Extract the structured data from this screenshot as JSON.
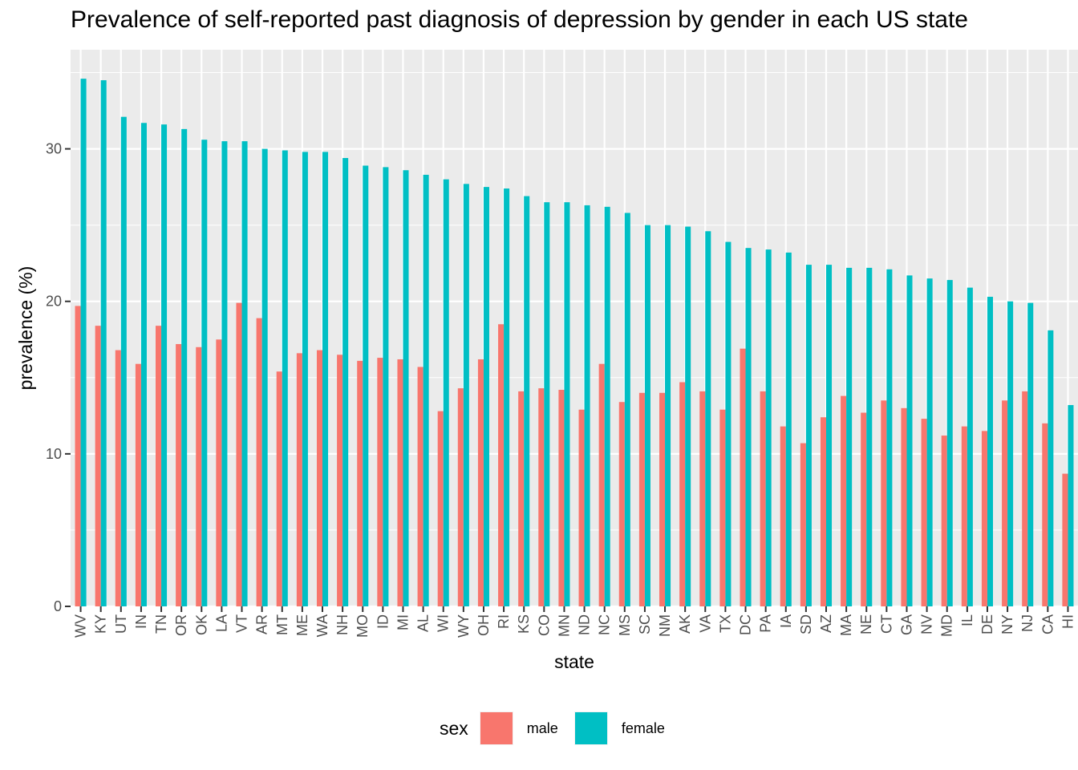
{
  "chart_data": {
    "type": "bar",
    "title": "Prevalence of self-reported past diagnosis of depression by gender in each US state",
    "xlabel": "state",
    "ylabel": "prevalence (%)",
    "ylim": [
      0,
      36.5
    ],
    "yticks": [
      0,
      10,
      20,
      30
    ],
    "grid": true,
    "legend": {
      "title": "sex",
      "position": "bottom"
    },
    "categories": [
      "WV",
      "KY",
      "UT",
      "IN",
      "TN",
      "OR",
      "OK",
      "LA",
      "VT",
      "AR",
      "MT",
      "ME",
      "WA",
      "NH",
      "MO",
      "ID",
      "MI",
      "AL",
      "WI",
      "WY",
      "OH",
      "RI",
      "KS",
      "CO",
      "MN",
      "ND",
      "NC",
      "MS",
      "SC",
      "NM",
      "AK",
      "VA",
      "TX",
      "DC",
      "PA",
      "IA",
      "SD",
      "AZ",
      "MA",
      "NE",
      "CT",
      "GA",
      "NV",
      "MD",
      "IL",
      "DE",
      "NY",
      "NJ",
      "CA",
      "HI"
    ],
    "series": [
      {
        "name": "male",
        "color": "#F8766D",
        "values": [
          19.7,
          18.4,
          16.8,
          15.9,
          18.4,
          17.2,
          17.0,
          17.5,
          19.9,
          18.9,
          15.4,
          16.6,
          16.8,
          16.5,
          16.1,
          16.3,
          16.2,
          15.7,
          12.8,
          14.3,
          16.2,
          18.5,
          14.1,
          14.3,
          14.2,
          12.9,
          15.9,
          13.4,
          14.0,
          14.0,
          14.7,
          14.1,
          12.9,
          16.9,
          14.1,
          11.8,
          10.7,
          12.4,
          13.8,
          12.7,
          13.5,
          13.0,
          12.3,
          11.2,
          11.8,
          11.5,
          13.5,
          14.1,
          12.0,
          8.7
        ]
      },
      {
        "name": "female",
        "color": "#00BFC4",
        "values": [
          34.6,
          34.5,
          32.1,
          31.7,
          31.6,
          31.3,
          30.6,
          30.5,
          30.5,
          30.0,
          29.9,
          29.8,
          29.8,
          29.4,
          28.9,
          28.8,
          28.6,
          28.3,
          28.0,
          27.7,
          27.5,
          27.4,
          26.9,
          26.5,
          26.5,
          26.3,
          26.2,
          25.8,
          25.0,
          25.0,
          24.9,
          24.6,
          23.9,
          23.5,
          23.4,
          23.2,
          22.4,
          22.4,
          22.2,
          22.2,
          22.1,
          21.7,
          21.5,
          21.4,
          20.9,
          20.3,
          20.0,
          19.9,
          18.1,
          13.2
        ]
      }
    ]
  }
}
